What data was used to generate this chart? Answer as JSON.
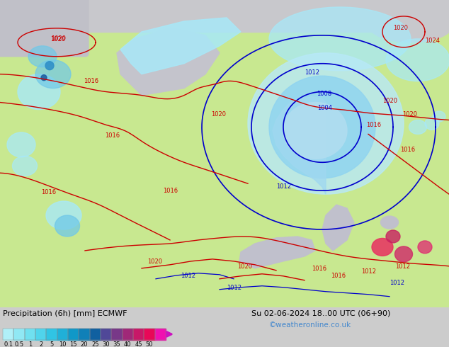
{
  "title_left": "Precipitation (6h) [mm] ECMWF",
  "title_right": "Su 02-06-2024 18..00 UTC (06+90)",
  "credit": "©weatheronline.co.uk",
  "colorbar_labels": [
    "0.1",
    "0.5",
    "1",
    "2",
    "5",
    "10",
    "15",
    "20",
    "25",
    "30",
    "35",
    "40",
    "45",
    "50"
  ],
  "colorbar_colors": [
    "#b0f0f8",
    "#90e8f4",
    "#70e0f0",
    "#50d4ec",
    "#30c4e4",
    "#20b0d8",
    "#1098c8",
    "#1080b8",
    "#1060a0",
    "#504898",
    "#783888",
    "#a02878",
    "#c81868",
    "#e80858",
    "#f010b0"
  ],
  "land_color": "#c8e890",
  "sea_color": "#d0d0d8",
  "precip_light": "#a8e8f8",
  "precip_medium": "#70c8e8",
  "precip_heavy": "#3090c8",
  "bg_color": "#cccccc",
  "bottom_bg": "#ffffff",
  "credit_color": "#4488cc",
  "red_isobar": "#cc0000",
  "blue_isobar": "#0000cc"
}
